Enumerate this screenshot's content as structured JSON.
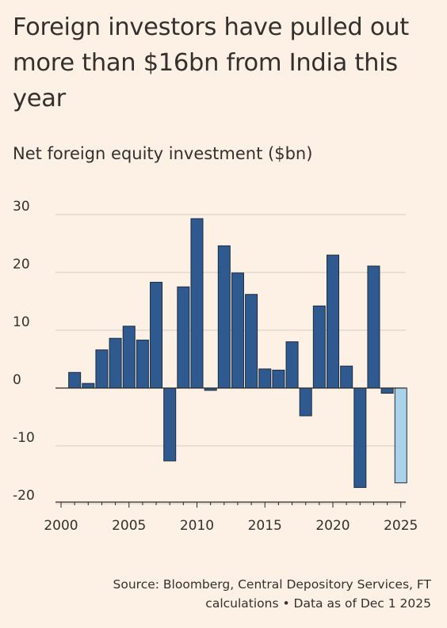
{
  "title": "Foreign investors have pulled out more than $16bn from India this year",
  "subtitle": "Net foreign equity investment ($bn)",
  "source": "Source: Bloomberg, Central Depository Services, FT calculations • Data as of Dec 1 2025",
  "colors": {
    "background": "#fdf1e5",
    "bar": "#2f5a90",
    "bar_highlight": "#aad3ea",
    "grid": "#d3cbc2",
    "text": "#33302e"
  },
  "chart_data": {
    "type": "bar",
    "title": "Net foreign equity investment ($bn)",
    "xlabel": "",
    "ylabel": "",
    "categories": [
      "2001",
      "2002",
      "2003",
      "2004",
      "2005",
      "2006",
      "2007",
      "2008",
      "2009",
      "2010",
      "2011",
      "2012",
      "2013",
      "2014",
      "2015",
      "2016",
      "2017",
      "2018",
      "2019",
      "2020",
      "2021",
      "2022",
      "2023",
      "2024",
      "2025"
    ],
    "values": [
      2.7,
      0.8,
      6.6,
      8.6,
      10.7,
      8.3,
      18.3,
      -12.6,
      17.5,
      29.3,
      -0.4,
      24.6,
      19.9,
      16.2,
      3.3,
      3.1,
      8.0,
      -4.8,
      14.2,
      23.0,
      3.8,
      -17.2,
      21.1,
      -0.9,
      -16.4
    ],
    "highlight": [
      "2025"
    ],
    "ylim": [
      -20,
      30
    ],
    "yticks": [
      "30",
      "20",
      "10",
      "0",
      "-10",
      "-20"
    ],
    "xticks": [
      "2000",
      "2005",
      "2010",
      "2015",
      "2020",
      "2025"
    ],
    "grid": true,
    "legend": "none"
  }
}
